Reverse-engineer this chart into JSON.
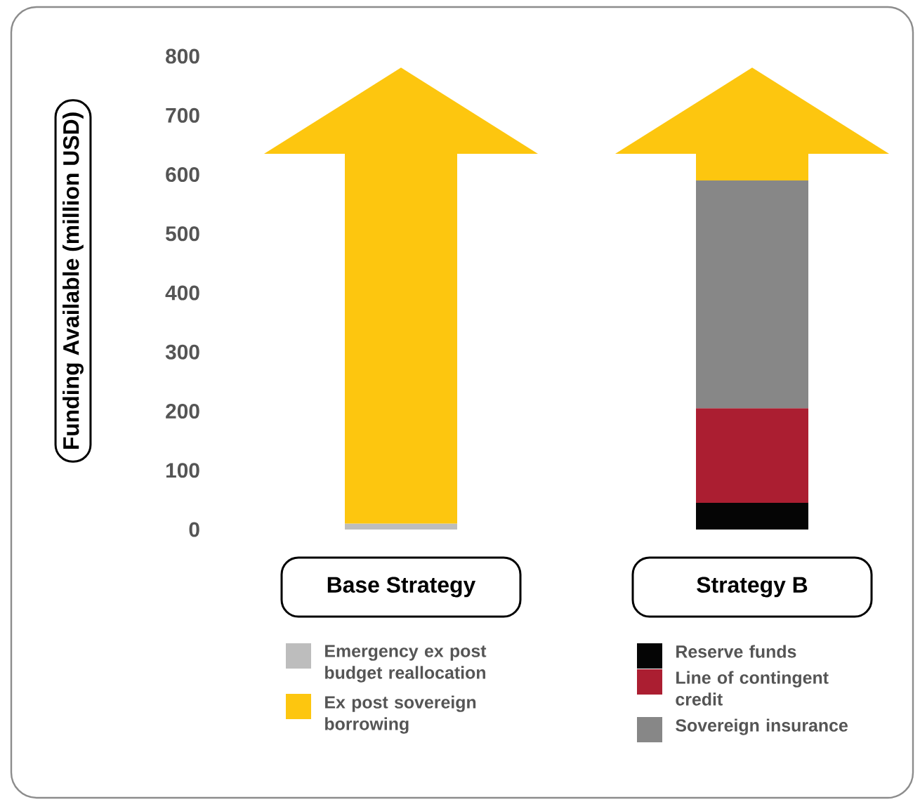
{
  "chart_data": {
    "type": "bar",
    "stacked": true,
    "categories": [
      "Base Strategy",
      "Strategy B"
    ],
    "ylabel": "Funding Available (million USD)",
    "ylim": [
      0,
      800
    ],
    "yticks": [
      0,
      100,
      200,
      300,
      400,
      500,
      600,
      700,
      800
    ],
    "grid": false,
    "legend": "bottom",
    "series": [
      {
        "name": "Emergency ex post budget reallocation",
        "color": "#bdbdbd",
        "values": [
          10,
          null
        ]
      },
      {
        "name": "Reserve funds",
        "color": "#050505",
        "values": [
          null,
          45
        ]
      },
      {
        "name": "Line of contingent credit",
        "color": "#ab1e31",
        "values": [
          null,
          160
        ]
      },
      {
        "name": "Sovereign insurance",
        "color": "#878787",
        "values": [
          null,
          385
        ]
      },
      {
        "name": "Ex post sovereign borrowing",
        "color": "#fdc60f",
        "values": [
          625,
          45
        ]
      }
    ]
  }
}
